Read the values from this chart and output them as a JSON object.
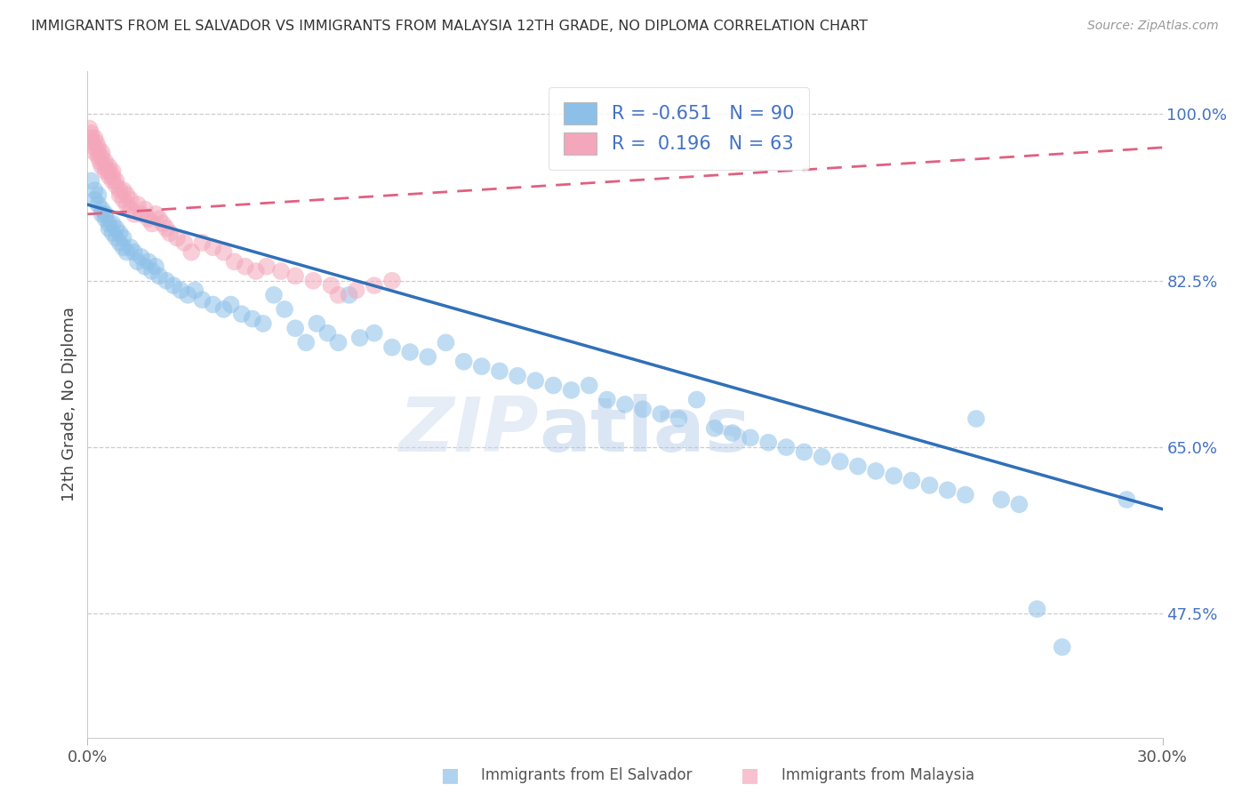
{
  "title": "IMMIGRANTS FROM EL SALVADOR VS IMMIGRANTS FROM MALAYSIA 12TH GRADE, NO DIPLOMA CORRELATION CHART",
  "source": "Source: ZipAtlas.com",
  "ylabel_label": "12th Grade, No Diploma",
  "ylabel_ticks": [
    100.0,
    82.5,
    65.0,
    47.5
  ],
  "xmin": 0.0,
  "xmax": 0.3,
  "ymin": 0.345,
  "ymax": 1.045,
  "legend_r1": "-0.651",
  "legend_n1": "90",
  "legend_r2": "0.196",
  "legend_n2": "63",
  "color_blue": "#8dc0e8",
  "color_pink": "#f4a7bb",
  "color_blue_line": "#3070b8",
  "color_pink_line": "#e06080",
  "watermark_zip": "ZIP",
  "watermark_atlas": "atlas",
  "blue_line_x0": 0.0,
  "blue_line_y0": 0.905,
  "blue_line_x1": 0.3,
  "blue_line_y1": 0.585,
  "pink_line_x0": 0.0,
  "pink_line_y0": 0.895,
  "pink_line_x1": 0.3,
  "pink_line_y1": 0.965,
  "el_salvador_x": [
    0.001,
    0.002,
    0.002,
    0.003,
    0.003,
    0.004,
    0.004,
    0.005,
    0.005,
    0.006,
    0.006,
    0.007,
    0.007,
    0.008,
    0.008,
    0.009,
    0.009,
    0.01,
    0.01,
    0.011,
    0.012,
    0.013,
    0.014,
    0.015,
    0.016,
    0.017,
    0.018,
    0.019,
    0.02,
    0.022,
    0.024,
    0.026,
    0.028,
    0.03,
    0.032,
    0.035,
    0.038,
    0.04,
    0.043,
    0.046,
    0.049,
    0.052,
    0.055,
    0.058,
    0.061,
    0.064,
    0.067,
    0.07,
    0.073,
    0.076,
    0.08,
    0.085,
    0.09,
    0.095,
    0.1,
    0.105,
    0.11,
    0.115,
    0.12,
    0.125,
    0.13,
    0.135,
    0.14,
    0.145,
    0.15,
    0.155,
    0.16,
    0.165,
    0.17,
    0.175,
    0.18,
    0.185,
    0.19,
    0.195,
    0.2,
    0.205,
    0.21,
    0.215,
    0.22,
    0.225,
    0.23,
    0.235,
    0.24,
    0.245,
    0.248,
    0.255,
    0.26,
    0.265,
    0.272,
    0.29
  ],
  "el_salvador_y": [
    0.93,
    0.92,
    0.91,
    0.905,
    0.915,
    0.895,
    0.9,
    0.89,
    0.895,
    0.885,
    0.88,
    0.885,
    0.875,
    0.87,
    0.88,
    0.875,
    0.865,
    0.87,
    0.86,
    0.855,
    0.86,
    0.855,
    0.845,
    0.85,
    0.84,
    0.845,
    0.835,
    0.84,
    0.83,
    0.825,
    0.82,
    0.815,
    0.81,
    0.815,
    0.805,
    0.8,
    0.795,
    0.8,
    0.79,
    0.785,
    0.78,
    0.81,
    0.795,
    0.775,
    0.76,
    0.78,
    0.77,
    0.76,
    0.81,
    0.765,
    0.77,
    0.755,
    0.75,
    0.745,
    0.76,
    0.74,
    0.735,
    0.73,
    0.725,
    0.72,
    0.715,
    0.71,
    0.715,
    0.7,
    0.695,
    0.69,
    0.685,
    0.68,
    0.7,
    0.67,
    0.665,
    0.66,
    0.655,
    0.65,
    0.645,
    0.64,
    0.635,
    0.63,
    0.625,
    0.62,
    0.615,
    0.61,
    0.605,
    0.6,
    0.68,
    0.595,
    0.59,
    0.48,
    0.44,
    0.595
  ],
  "malaysia_x": [
    0.0005,
    0.001,
    0.001,
    0.0015,
    0.002,
    0.002,
    0.002,
    0.0025,
    0.003,
    0.003,
    0.003,
    0.0035,
    0.004,
    0.004,
    0.004,
    0.005,
    0.005,
    0.005,
    0.006,
    0.006,
    0.006,
    0.007,
    0.007,
    0.007,
    0.008,
    0.008,
    0.009,
    0.009,
    0.01,
    0.01,
    0.011,
    0.011,
    0.012,
    0.012,
    0.013,
    0.014,
    0.015,
    0.016,
    0.017,
    0.018,
    0.019,
    0.02,
    0.021,
    0.022,
    0.023,
    0.025,
    0.027,
    0.029,
    0.032,
    0.035,
    0.038,
    0.041,
    0.044,
    0.047,
    0.05,
    0.054,
    0.058,
    0.063,
    0.068,
    0.075,
    0.08,
    0.085,
    0.07
  ],
  "malaysia_y": [
    0.985,
    0.98,
    0.975,
    0.97,
    0.975,
    0.965,
    0.96,
    0.97,
    0.965,
    0.955,
    0.96,
    0.95,
    0.96,
    0.955,
    0.945,
    0.95,
    0.94,
    0.945,
    0.94,
    0.935,
    0.945,
    0.94,
    0.93,
    0.935,
    0.93,
    0.925,
    0.92,
    0.915,
    0.92,
    0.91,
    0.915,
    0.905,
    0.91,
    0.9,
    0.895,
    0.905,
    0.895,
    0.9,
    0.89,
    0.885,
    0.895,
    0.89,
    0.885,
    0.88,
    0.875,
    0.87,
    0.865,
    0.855,
    0.865,
    0.86,
    0.855,
    0.845,
    0.84,
    0.835,
    0.84,
    0.835,
    0.83,
    0.825,
    0.82,
    0.815,
    0.82,
    0.825,
    0.81
  ]
}
